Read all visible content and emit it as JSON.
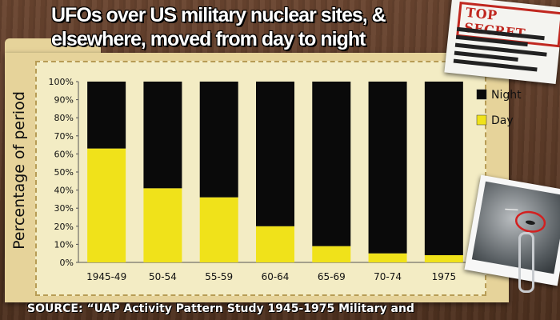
{
  "title_lines": [
    "UFOs over US military nuclear sites, &",
    "elsewhere, moved from day to night"
  ],
  "stamp_text": "TOP SECRET",
  "source_text": "SOURCE: “UAP Activity Pattern Study 1945-1975 Military and",
  "colors": {
    "night": "#0a0a0a",
    "day": "#f0e21a",
    "panel": "#f3ecc4",
    "stamp": "#c0271f"
  },
  "icons": {
    "stamp": "top-secret-document-icon",
    "photo": "ufo-photo-icon",
    "clip": "paperclip-icon"
  },
  "chart_data": {
    "type": "bar",
    "stacked": true,
    "categories": [
      "1945-49",
      "50-54",
      "55-59",
      "60-64",
      "65-69",
      "70-74",
      "1975"
    ],
    "series": [
      {
        "name": "Day",
        "values": [
          63,
          41,
          36,
          20,
          9,
          5,
          4
        ]
      },
      {
        "name": "Night",
        "values": [
          37,
          59,
          64,
          80,
          91,
          95,
          96
        ]
      }
    ],
    "ylabel": "Percentage of period",
    "xlabel": "",
    "ylim": [
      0,
      100
    ],
    "yticks": [
      "0%",
      "10%",
      "20%",
      "30%",
      "40%",
      "50%",
      "60%",
      "70%",
      "80%",
      "90%",
      "100%"
    ],
    "legend": {
      "position": "right",
      "entries": [
        "Night",
        "Day"
      ]
    },
    "grid": false
  }
}
